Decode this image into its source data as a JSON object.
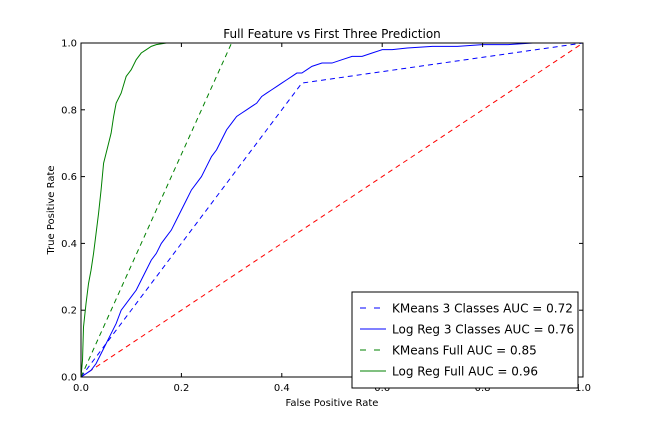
{
  "chart_data": {
    "type": "line",
    "title": "Full Feature vs First Three Prediction",
    "xlabel": "False Positive Rate",
    "ylabel": "True Positive Rate",
    "xlim": [
      0,
      1
    ],
    "ylim": [
      0,
      1
    ],
    "x_ticks": [
      "0.0",
      "0.2",
      "0.4",
      "0.6",
      "0.8",
      "1.0"
    ],
    "y_ticks": [
      "0.0",
      "0.2",
      "0.4",
      "0.6",
      "0.8",
      "1.0"
    ],
    "grid": false,
    "legend_position": "lower-right",
    "series": [
      {
        "name": "KMeans 3 Classes AUC = 0.72",
        "color": "#0000ff",
        "style": "dashed",
        "x": [
          0,
          0.44,
          1
        ],
        "y": [
          0,
          0.88,
          1
        ]
      },
      {
        "name": "Log Reg 3 Classes AUC = 0.76",
        "color": "#0000ff",
        "style": "solid",
        "x": [
          0,
          0.01,
          0.02,
          0.03,
          0.04,
          0.05,
          0.06,
          0.07,
          0.08,
          0.09,
          0.1,
          0.11,
          0.12,
          0.13,
          0.14,
          0.15,
          0.16,
          0.17,
          0.18,
          0.19,
          0.2,
          0.21,
          0.22,
          0.23,
          0.24,
          0.25,
          0.26,
          0.27,
          0.28,
          0.29,
          0.3,
          0.31,
          0.32,
          0.33,
          0.34,
          0.35,
          0.36,
          0.37,
          0.38,
          0.39,
          0.4,
          0.41,
          0.42,
          0.43,
          0.44,
          0.45,
          0.46,
          0.48,
          0.5,
          0.52,
          0.54,
          0.56,
          0.58,
          0.6,
          0.62,
          0.65,
          0.7,
          0.75,
          0.8,
          0.85,
          0.9,
          0.95,
          1.0
        ],
        "y": [
          0,
          0.01,
          0.02,
          0.04,
          0.07,
          0.1,
          0.13,
          0.16,
          0.2,
          0.22,
          0.24,
          0.26,
          0.29,
          0.32,
          0.35,
          0.37,
          0.4,
          0.42,
          0.44,
          0.47,
          0.5,
          0.53,
          0.56,
          0.58,
          0.6,
          0.63,
          0.66,
          0.68,
          0.71,
          0.74,
          0.76,
          0.78,
          0.79,
          0.8,
          0.81,
          0.82,
          0.84,
          0.85,
          0.86,
          0.87,
          0.88,
          0.89,
          0.9,
          0.91,
          0.91,
          0.92,
          0.93,
          0.94,
          0.94,
          0.95,
          0.96,
          0.96,
          0.97,
          0.98,
          0.98,
          0.985,
          0.99,
          0.99,
          0.995,
          0.995,
          1.0,
          1.0,
          1.0
        ]
      },
      {
        "name": "KMeans Full AUC = 0.85",
        "color": "#008000",
        "style": "dashed",
        "x": [
          0,
          0.3,
          1
        ],
        "y": [
          0,
          1,
          1
        ]
      },
      {
        "name": "Log Reg Full AUC = 0.96",
        "color": "#008000",
        "style": "solid",
        "x": [
          0,
          0.003,
          0.005,
          0.01,
          0.015,
          0.02,
          0.025,
          0.03,
          0.035,
          0.04,
          0.045,
          0.05,
          0.055,
          0.06,
          0.065,
          0.07,
          0.08,
          0.09,
          0.1,
          0.11,
          0.12,
          0.13,
          0.14,
          0.15,
          0.17,
          0.2,
          0.22,
          0.3,
          0.5,
          1.0
        ],
        "y": [
          0,
          0.05,
          0.15,
          0.22,
          0.28,
          0.32,
          0.37,
          0.43,
          0.49,
          0.56,
          0.64,
          0.67,
          0.7,
          0.73,
          0.78,
          0.82,
          0.85,
          0.9,
          0.92,
          0.95,
          0.97,
          0.98,
          0.99,
          0.995,
          1.0,
          1.0,
          1.0,
          1.0,
          1.0,
          1.0
        ]
      },
      {
        "name": "",
        "color": "#ff0000",
        "style": "dashed",
        "x": [
          0,
          1
        ],
        "y": [
          0,
          1
        ]
      }
    ]
  }
}
